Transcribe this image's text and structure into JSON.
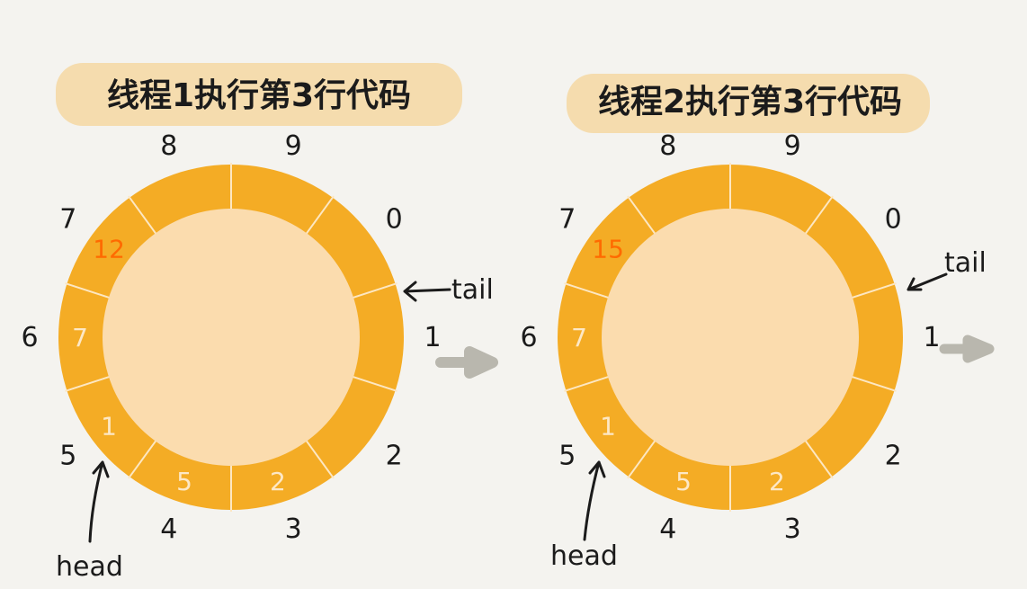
{
  "colors": {
    "background": "#f4f3ef",
    "ring": "#f4ac25",
    "inner": "#fbdcae",
    "divider": "#fde7c2",
    "value_text": "#fde8c6",
    "highlight_value": "#ff6a00",
    "title_band": "#f5dcae",
    "index_text": "#1b1b1b",
    "next_arrow": "#b9b7ae"
  },
  "panels": [
    {
      "title": "线程1执行第3行代码",
      "slot_indices": [
        "0",
        "1",
        "2",
        "3",
        "4",
        "5",
        "6",
        "7",
        "8",
        "9"
      ],
      "slot_values": [
        "",
        "",
        "",
        "2",
        "5",
        "1",
        "7",
        "12",
        "",
        ""
      ],
      "highlight_slot": 7,
      "head_label": "head",
      "head_slot": 3,
      "tail_label": "tail",
      "tail_slot": 7,
      "next_arrow_icon": "right-arrow-icon"
    },
    {
      "title": "线程2执行第3行代码",
      "slot_indices": [
        "0",
        "1",
        "2",
        "3",
        "4",
        "5",
        "6",
        "7",
        "8",
        "9"
      ],
      "slot_values": [
        "",
        "",
        "",
        "2",
        "5",
        "1",
        "7",
        "15",
        "",
        ""
      ],
      "highlight_slot": 7,
      "head_label": "head",
      "head_slot": 3,
      "tail_label": "tail",
      "tail_slot": 7,
      "next_arrow_icon": "right-arrow-icon"
    }
  ]
}
